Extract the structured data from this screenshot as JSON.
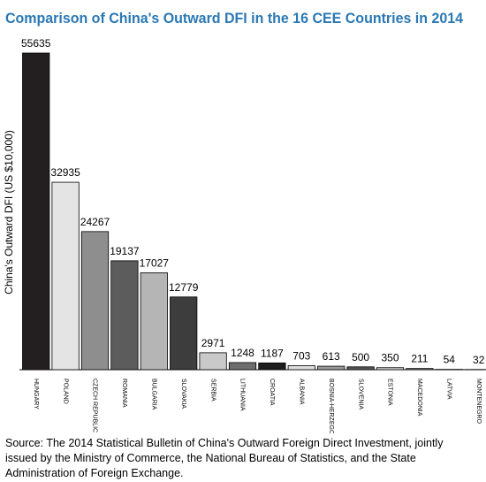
{
  "chart_data": {
    "type": "bar",
    "title": "Comparison of China's Outward DFI in the 16 CEE Countries in 2014",
    "y_label": "China's Outward DFI (US $10,000)",
    "categories": [
      "HUNGARY",
      "POLAND",
      "CZECH REPUBLIC",
      "ROMANIA",
      "BULGARIA",
      "SLOVAKIA",
      "SERBIA",
      "LITHUANIA",
      "CROATIA",
      "ALBANIA",
      "BOSNIA-HERZEGOVINA",
      "SLOVENIA",
      "ESTONIA",
      "MACEDONIA",
      "LATVIA",
      "MONTENEGRO"
    ],
    "values": [
      55635,
      32935,
      24267,
      19137,
      17027,
      12779,
      2971,
      1248,
      1187,
      703,
      613,
      500,
      350,
      211,
      54,
      32
    ],
    "colors": [
      "#231f20",
      "#e4e4e4",
      "#8e8e8e",
      "#5c5c5c",
      "#b5b5b5",
      "#3d3d3d",
      "#c9c9c9",
      "#6e6e6e",
      "#1e1e1e",
      "#dedede",
      "#9a9a9a",
      "#555555",
      "#d2d2d2",
      "#888888",
      "#aaaaaa",
      "#cccccc"
    ],
    "source": "Source: The 2014 Statistical Bulletin of China's Outward Foreign Direct Investment, jointly issued by the Ministry of Commerce, the National Bureau of Statistics, and the State Administration of Foreign Exchange."
  }
}
